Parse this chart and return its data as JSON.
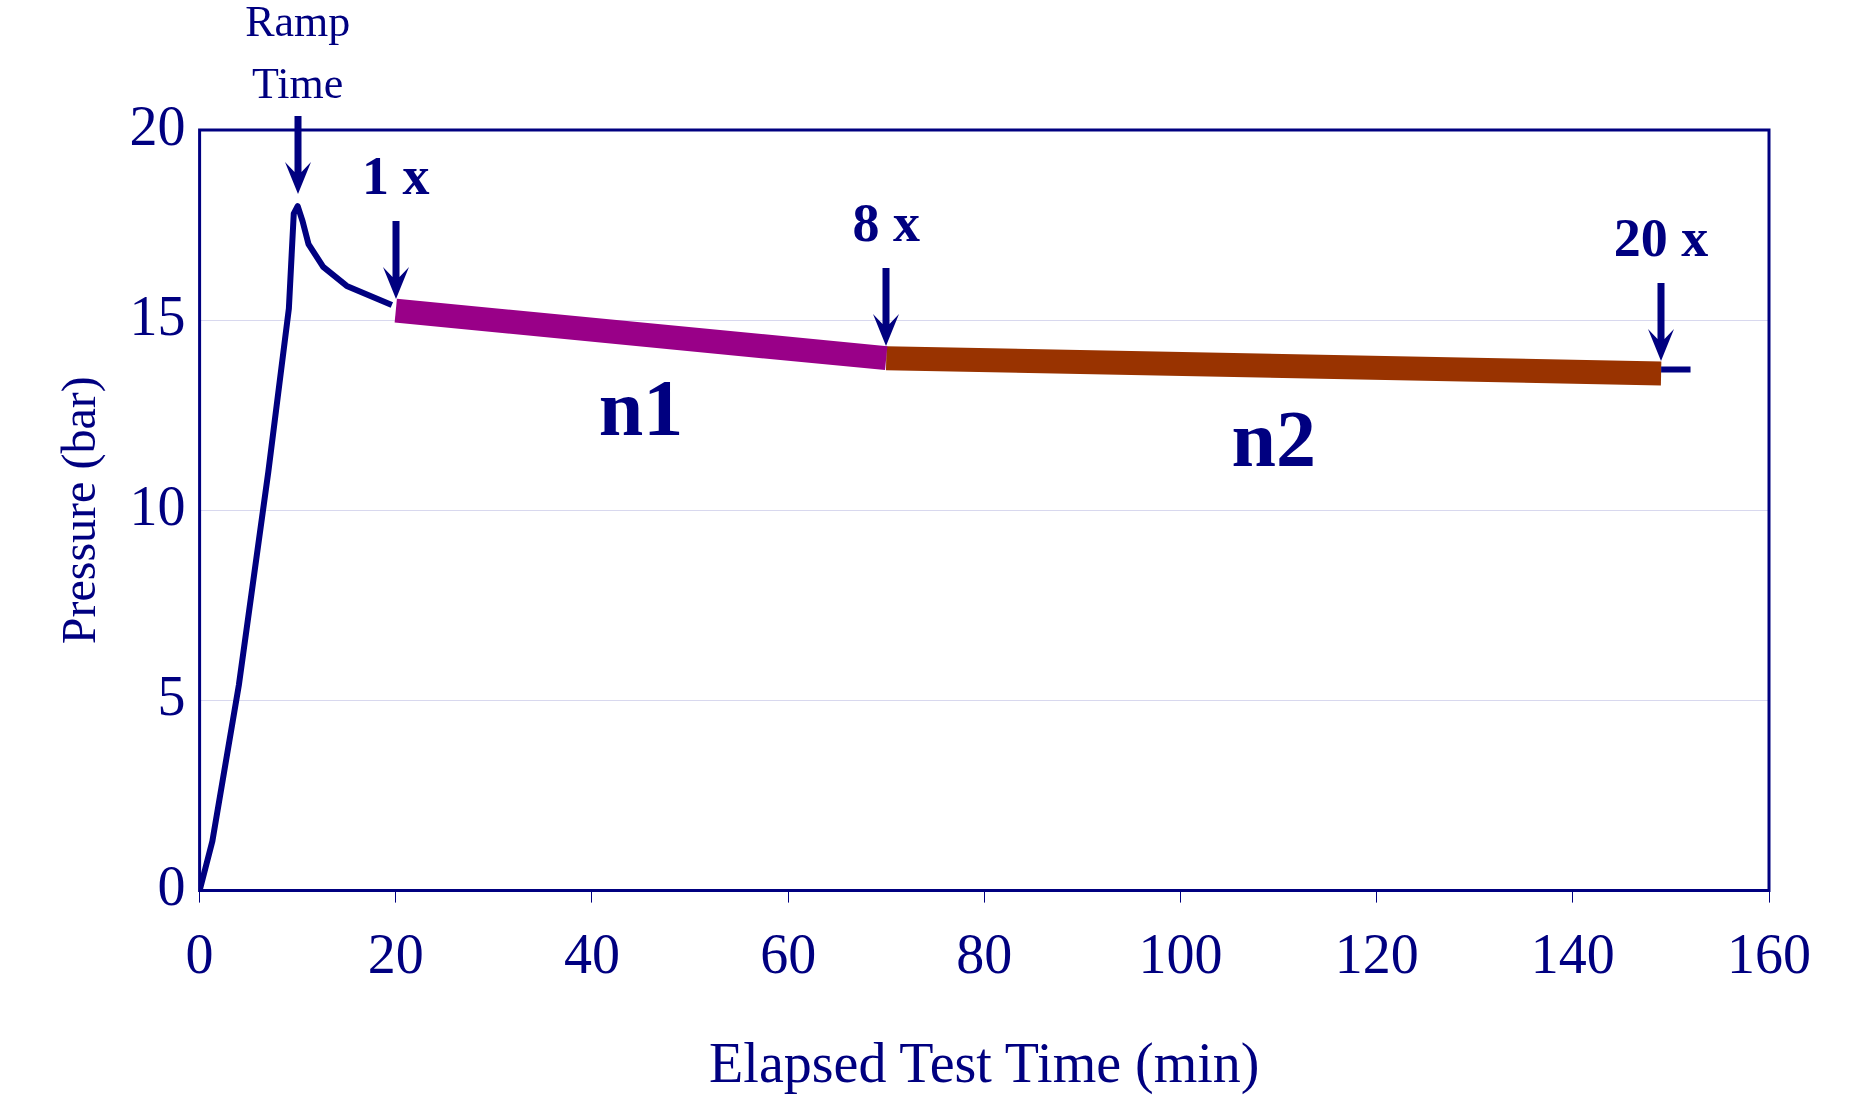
{
  "chart_data": {
    "type": "line",
    "xlabel": "Elapsed Test Time (min)",
    "ylabel": "Pressure (bar)",
    "xlim": [
      0,
      160
    ],
    "xticks": [
      0,
      20,
      40,
      60,
      80,
      100,
      120,
      140,
      160
    ],
    "ylim": [
      0,
      20
    ],
    "yticks": [
      0,
      5,
      10,
      15,
      20
    ],
    "grid": "y",
    "legend": false,
    "marker": "none",
    "line_style": "solid",
    "series": [
      {
        "color": "#000080",
        "x": [
          0,
          1.3,
          4,
          7,
          9.1,
          9.6,
          10,
          10.5,
          11.1,
          12.6,
          15,
          19.6,
          85,
          149,
          152
        ],
        "values": [
          0,
          1.3,
          5.4,
          11,
          15.3,
          17.8,
          18,
          17.6,
          17,
          16.4,
          15.9,
          15.4,
          null,
          13.7,
          13.7
        ]
      },
      {
        "name": "n1",
        "color": "#990088",
        "x": [
          20,
          70
        ],
        "values": [
          15.25,
          14
        ]
      },
      {
        "name": "n2",
        "color": "#993300",
        "x": [
          70,
          149
        ],
        "values": [
          14,
          13.6
        ]
      }
    ],
    "annotations": [
      {
        "text": "Ramp Time",
        "x": 10,
        "y": 18
      },
      {
        "text": "1 x",
        "x": 20,
        "y": 15.25
      },
      {
        "text": "8 x",
        "x": 70,
        "y": 14
      },
      {
        "text": "20 x",
        "x": 149,
        "y": 13.6
      }
    ]
  }
}
